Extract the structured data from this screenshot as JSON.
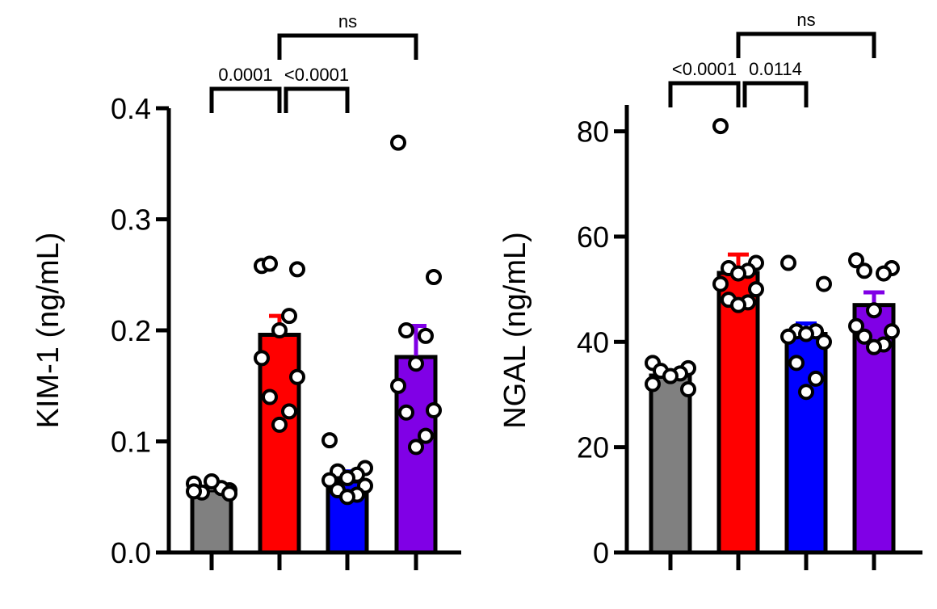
{
  "chart_data": [
    {
      "type": "bar",
      "title": "",
      "ylabel": "KIM-1 (ng/mL)",
      "xlabel": "",
      "ylim": [
        0,
        0.4
      ],
      "yticks": [
        "0.0",
        "0.1",
        "0.2",
        "0.3",
        "0.4"
      ],
      "ytick_values": [
        0,
        0.1,
        0.2,
        0.3,
        0.4
      ],
      "categories": [
        "",
        "",
        "",
        ""
      ],
      "colors": [
        "#808080",
        "#ff0000",
        "#0000ff",
        "#8000e6"
      ],
      "values": [
        0.056,
        0.196,
        0.064,
        0.176
      ],
      "errors": [
        0.003,
        0.017,
        0.009,
        0.028
      ],
      "points": [
        [
          0.062,
          0.056,
          0.054,
          0.058,
          0.064,
          0.055,
          0.053
        ],
        [
          0.258,
          0.255,
          0.26,
          0.213,
          0.2,
          0.175,
          0.158,
          0.14,
          0.127,
          0.115
        ],
        [
          0.101,
          0.076,
          0.073,
          0.07,
          0.067,
          0.065,
          0.06,
          0.056,
          0.052,
          0.05
        ],
        [
          0.369,
          0.248,
          0.2,
          0.195,
          0.17,
          0.15,
          0.128,
          0.126,
          0.105,
          0.095
        ]
      ],
      "comparisons": [
        {
          "from": 0,
          "to": 1,
          "label": "0.0001"
        },
        {
          "from": 1,
          "to": 2,
          "label": "<0.0001"
        },
        {
          "from": 1,
          "to": 3,
          "label": "ns"
        }
      ]
    },
    {
      "type": "bar",
      "title": "",
      "ylabel": "NGAL (ng/mL)",
      "xlabel": "",
      "ylim": [
        0,
        85
      ],
      "yticks": [
        "0",
        "20",
        "40",
        "60",
        "80"
      ],
      "ytick_values": [
        0,
        20,
        40,
        60,
        80
      ],
      "categories": [
        "",
        "",
        "",
        ""
      ],
      "colors": [
        "#808080",
        "#ff0000",
        "#0000ff",
        "#8000e6"
      ],
      "values": [
        33.6,
        53.1,
        41.5,
        47.0
      ],
      "errors": [
        0.8,
        3.5,
        2.0,
        2.4
      ],
      "points": [
        [
          36.0,
          35.0,
          34.5,
          34.0,
          33.5,
          32.0,
          31.0
        ],
        [
          81.0,
          55.0,
          54.0,
          53.5,
          53.0,
          51.0,
          50.0,
          48.0,
          47.5,
          47.0
        ],
        [
          55.0,
          51.0,
          42.0,
          42.0,
          41.5,
          41.0,
          40.0,
          36.0,
          33.0,
          30.5
        ],
        [
          55.5,
          54.0,
          53.5,
          53.0,
          46.0,
          43.0,
          42.0,
          41.0,
          39.5,
          39.0
        ]
      ],
      "comparisons": [
        {
          "from": 0,
          "to": 1,
          "label": "<0.0001"
        },
        {
          "from": 1,
          "to": 2,
          "label": "0.0114"
        },
        {
          "from": 1,
          "to": 3,
          "label": "ns"
        }
      ]
    }
  ]
}
